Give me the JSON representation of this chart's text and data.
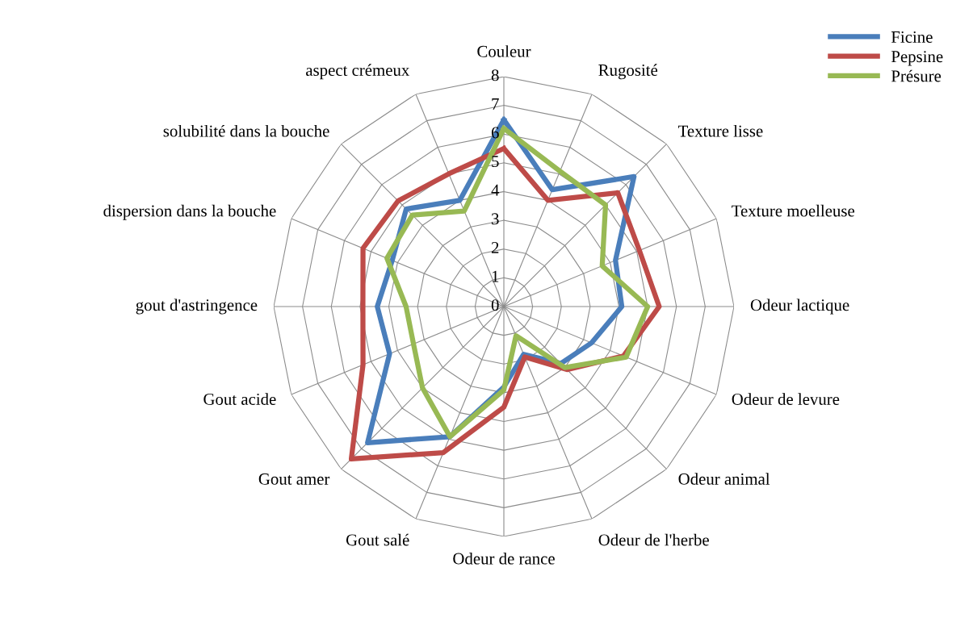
{
  "chart_data": {
    "type": "radar",
    "categories": [
      "Couleur",
      "Rugosité",
      "Texture lisse",
      "Texture moelleuse",
      "Odeur lactique",
      "Odeur de levure",
      "Odeur animal",
      "Odeur de l'herbe",
      "Odeur de rance",
      "Gout salé",
      "Gout amer",
      "Gout acide",
      "gout d'astringence",
      "dispersion dans la bouche",
      "solubilité dans la bouche",
      "aspect crémeux"
    ],
    "series": [
      {
        "name": "Ficine",
        "color": "#4a7ebb",
        "values": [
          6.5,
          4.4,
          6.4,
          4.2,
          4.1,
          3.3,
          2.8,
          1.8,
          2.8,
          4.9,
          6.7,
          4.3,
          4.4,
          4.2,
          4.8,
          4.0
        ]
      },
      {
        "name": "Pepsine",
        "color": "#be4b48",
        "values": [
          5.5,
          4.0,
          5.6,
          5.1,
          5.4,
          4.5,
          3.1,
          1.9,
          3.5,
          5.5,
          7.5,
          5.3,
          4.9,
          5.3,
          5.2,
          5.0
        ]
      },
      {
        "name": "Présure",
        "color": "#98b954",
        "values": [
          6.2,
          5.1,
          5.0,
          3.7,
          5.0,
          4.6,
          3.0,
          1.1,
          2.9,
          4.9,
          4.0,
          3.4,
          3.4,
          4.4,
          4.5,
          3.6
        ]
      }
    ],
    "ylim": [
      0,
      8
    ],
    "yticks": [
      0,
      1,
      2,
      3,
      4,
      5,
      6,
      7,
      8
    ],
    "grid": true,
    "legend": "top right",
    "marker": "none",
    "line_style": "solid"
  }
}
